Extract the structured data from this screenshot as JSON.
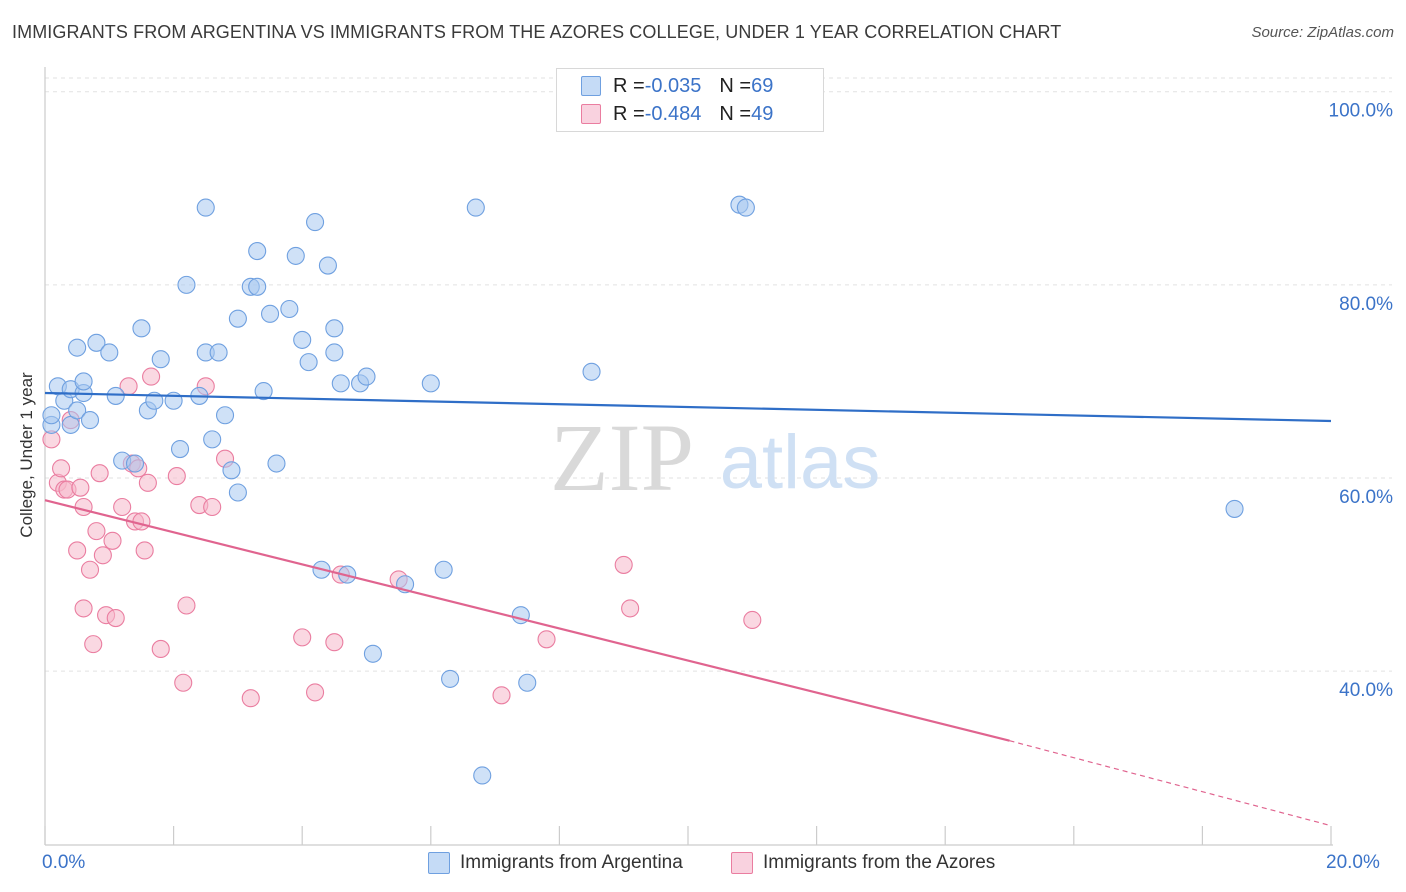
{
  "title": "IMMIGRANTS FROM ARGENTINA VS IMMIGRANTS FROM THE AZORES COLLEGE, UNDER 1 YEAR CORRELATION CHART",
  "source": "Source: ZipAtlas.com",
  "watermark": {
    "zip": "ZIP",
    "atlas": "atlas"
  },
  "legend": [
    {
      "r_label": "R = ",
      "r": "-0.035",
      "n_label": "N = ",
      "n": "69",
      "color": "#a8c8f0"
    },
    {
      "r_label": "R = ",
      "r": "-0.484",
      "n_label": "N = ",
      "n": "49",
      "color": "#f5b8cb"
    }
  ],
  "chart_data": {
    "type": "scatter",
    "title": "IMMIGRANTS FROM ARGENTINA VS IMMIGRANTS FROM THE AZORES COLLEGE, UNDER 1 YEAR CORRELATION CHART",
    "xlabel": "",
    "ylabel": "College, Under 1 year",
    "xlim": [
      0,
      20
    ],
    "ylim": [
      22,
      102
    ],
    "x_tick_labels": [
      "0.0%",
      "20.0%"
    ],
    "y_ticks": [
      40,
      60,
      80,
      100
    ],
    "y_tick_labels": [
      "40.0%",
      "60.0%",
      "80.0%",
      "100.0%"
    ],
    "grid": true,
    "legend_position": "bottom",
    "series": [
      {
        "name": "Immigrants from Argentina",
        "color": "#6fa0e0",
        "fill": "#a8c8f0",
        "trend": [
          [
            0,
            68.8
          ],
          [
            20,
            65.9
          ]
        ],
        "points": [
          [
            0.1,
            65.5
          ],
          [
            0.1,
            66.5
          ],
          [
            0.2,
            69.5
          ],
          [
            0.3,
            68.0
          ],
          [
            0.4,
            65.5
          ],
          [
            0.4,
            69.2
          ],
          [
            0.5,
            67.0
          ],
          [
            0.5,
            73.5
          ],
          [
            0.6,
            68.8
          ],
          [
            0.6,
            70.0
          ],
          [
            0.7,
            66.0
          ],
          [
            0.8,
            74.0
          ],
          [
            1.0,
            73.0
          ],
          [
            1.1,
            68.5
          ],
          [
            1.2,
            61.8
          ],
          [
            1.4,
            61.5
          ],
          [
            1.5,
            75.5
          ],
          [
            1.6,
            67.0
          ],
          [
            1.7,
            68.0
          ],
          [
            1.8,
            72.3
          ],
          [
            2.0,
            68.0
          ],
          [
            2.1,
            63.0
          ],
          [
            2.2,
            80.0
          ],
          [
            2.4,
            68.5
          ],
          [
            2.5,
            73.0
          ],
          [
            2.5,
            88.0
          ],
          [
            2.6,
            64.0
          ],
          [
            2.7,
            73.0
          ],
          [
            2.8,
            66.5
          ],
          [
            2.9,
            60.8
          ],
          [
            3.0,
            58.5
          ],
          [
            3.0,
            76.5
          ],
          [
            3.2,
            79.8
          ],
          [
            3.3,
            79.8
          ],
          [
            3.3,
            83.5
          ],
          [
            3.4,
            69.0
          ],
          [
            3.5,
            77.0
          ],
          [
            3.6,
            61.5
          ],
          [
            3.8,
            77.5
          ],
          [
            3.9,
            83.0
          ],
          [
            4.0,
            74.3
          ],
          [
            4.1,
            72.0
          ],
          [
            4.2,
            86.5
          ],
          [
            4.3,
            50.5
          ],
          [
            4.4,
            82.0
          ],
          [
            4.5,
            75.5
          ],
          [
            4.5,
            73.0
          ],
          [
            4.6,
            69.8
          ],
          [
            4.7,
            50.0
          ],
          [
            4.9,
            69.8
          ],
          [
            5.0,
            70.5
          ],
          [
            5.1,
            41.8
          ],
          [
            5.6,
            49.0
          ],
          [
            6.0,
            69.8
          ],
          [
            6.2,
            50.5
          ],
          [
            6.3,
            39.2
          ],
          [
            6.7,
            88.0
          ],
          [
            6.8,
            29.2
          ],
          [
            7.4,
            45.8
          ],
          [
            7.5,
            38.8
          ],
          [
            8.5,
            71.0
          ],
          [
            10.8,
            88.3
          ],
          [
            10.9,
            88.0
          ],
          [
            18.5,
            56.8
          ]
        ]
      },
      {
        "name": "Immigrants from the Azores",
        "color": "#ea7da0",
        "fill": "#f5b8cb",
        "trend": [
          [
            0,
            57.7
          ],
          [
            15,
            32.8
          ]
        ],
        "trend_dashed": [
          [
            15,
            32.8
          ],
          [
            20,
            24.0
          ]
        ],
        "points": [
          [
            0.1,
            64.0
          ],
          [
            0.2,
            59.5
          ],
          [
            0.25,
            61.0
          ],
          [
            0.3,
            58.8
          ],
          [
            0.35,
            58.8
          ],
          [
            0.4,
            66.0
          ],
          [
            0.5,
            52.5
          ],
          [
            0.55,
            59.0
          ],
          [
            0.6,
            57.0
          ],
          [
            0.6,
            46.5
          ],
          [
            0.7,
            50.5
          ],
          [
            0.75,
            42.8
          ],
          [
            0.8,
            54.5
          ],
          [
            0.85,
            60.5
          ],
          [
            0.9,
            52.0
          ],
          [
            0.95,
            45.8
          ],
          [
            1.05,
            53.5
          ],
          [
            1.1,
            45.5
          ],
          [
            1.2,
            57.0
          ],
          [
            1.3,
            69.5
          ],
          [
            1.35,
            61.5
          ],
          [
            1.4,
            55.5
          ],
          [
            1.45,
            61.0
          ],
          [
            1.5,
            55.5
          ],
          [
            1.55,
            52.5
          ],
          [
            1.6,
            59.5
          ],
          [
            1.65,
            70.5
          ],
          [
            1.8,
            42.3
          ],
          [
            2.05,
            60.2
          ],
          [
            2.15,
            38.8
          ],
          [
            2.2,
            46.8
          ],
          [
            2.4,
            57.2
          ],
          [
            2.5,
            69.5
          ],
          [
            2.6,
            57.0
          ],
          [
            2.8,
            62.0
          ],
          [
            3.2,
            37.2
          ],
          [
            4.0,
            43.5
          ],
          [
            4.2,
            37.8
          ],
          [
            4.5,
            43.0
          ],
          [
            4.6,
            50.0
          ],
          [
            5.5,
            49.5
          ],
          [
            7.1,
            37.5
          ],
          [
            7.8,
            43.3
          ],
          [
            9.0,
            51.0
          ],
          [
            9.1,
            46.5
          ],
          [
            11.0,
            45.3
          ]
        ]
      }
    ]
  }
}
